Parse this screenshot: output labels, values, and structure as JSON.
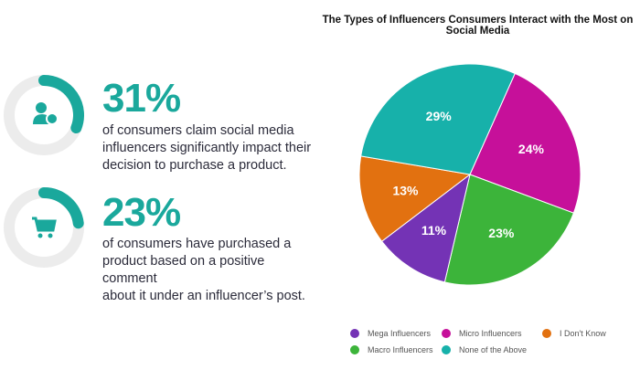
{
  "stats": [
    {
      "value": "31%",
      "fraction": 0.31,
      "icon": "influencer-user-star-icon",
      "text_lines": [
        "of consumers claim social media",
        "influencers significantly impact their",
        "decision to purchase a product."
      ]
    },
    {
      "value": "23%",
      "fraction": 0.23,
      "icon": "shopping-cart-icon",
      "text_lines": [
        "of consumers have purchased a",
        "product based on a positive comment",
        "about it under an influencer’s post."
      ]
    }
  ],
  "accent": "#1aa89c",
  "chart_data": {
    "type": "pie",
    "title": "The Types of Influencers Consumers Interact with the Most on Social Media",
    "categories": [
      "Micro Influencers",
      "Macro Influencers",
      "Mega Influencers",
      "I Don't Know",
      "None of the Above"
    ],
    "values": [
      24,
      23,
      11,
      13,
      29
    ],
    "labels": [
      "24%",
      "23%",
      "11%",
      "13%",
      "29%"
    ],
    "colors": [
      "#c6109a",
      "#3cb43a",
      "#7433b5",
      "#e27110",
      "#17b1aa"
    ],
    "legend_order": [
      "Mega Influencers",
      "Micro Influencers",
      "I Don't Know",
      "Macro Influencers",
      "None of the Above"
    ],
    "legend_position": "bottom"
  }
}
